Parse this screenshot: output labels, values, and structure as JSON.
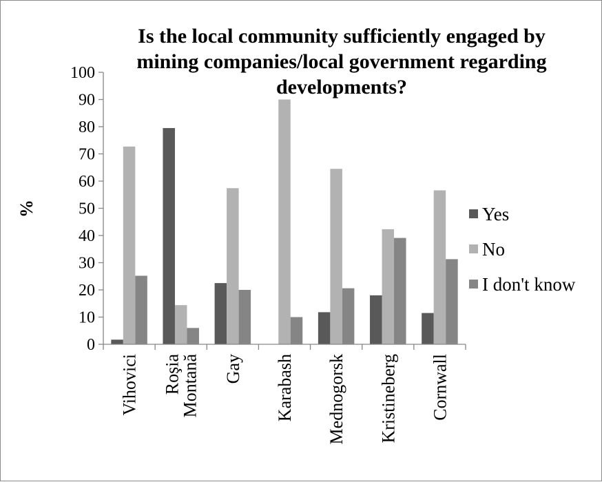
{
  "chart_data": {
    "type": "bar",
    "title_lines": [
      "Is the local community sufficiently engaged by",
      "mining companies/local government regarding",
      "developments?"
    ],
    "ylabel": "%",
    "xlabel": "",
    "ylim": [
      0,
      100
    ],
    "yticks": [
      "0",
      "10",
      "20",
      "30",
      "40",
      "50",
      "60",
      "70",
      "80",
      "90",
      "100"
    ],
    "categories": [
      [
        "Vihovici"
      ],
      [
        "Roşia",
        "Montană"
      ],
      [
        "Gay"
      ],
      [
        "Karabash"
      ],
      [
        "Mednogorsk"
      ],
      [
        "Kristineberg"
      ],
      [
        "Cornwall"
      ]
    ],
    "series": [
      {
        "name": "Yes",
        "color": "#595959",
        "values": [
          1.7,
          79.5,
          22.5,
          0,
          11.8,
          18,
          11.5
        ]
      },
      {
        "name": "No",
        "color": "#b2b2b2",
        "values": [
          72.7,
          14.4,
          57.4,
          90,
          64.5,
          42.3,
          56.6
        ]
      },
      {
        "name": "I don't know",
        "color": "#858585",
        "values": [
          25.2,
          6,
          20,
          10,
          20.6,
          39.1,
          31.3
        ]
      }
    ],
    "legend_position": "right",
    "grid": false
  }
}
